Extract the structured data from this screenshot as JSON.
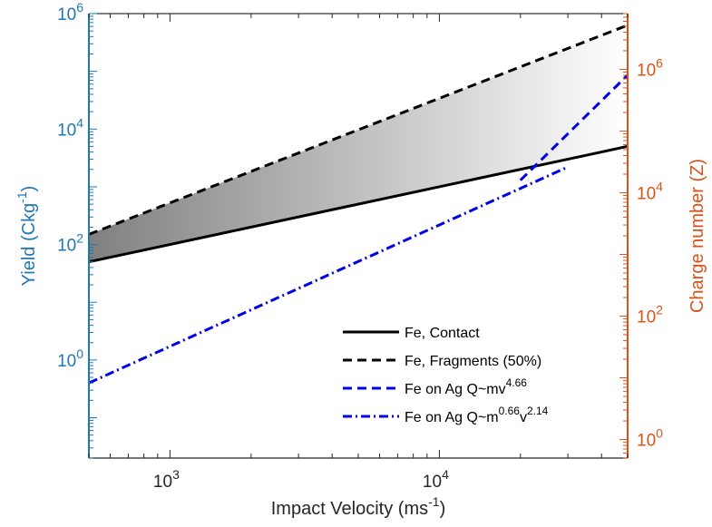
{
  "chart_data": {
    "type": "line",
    "title": "",
    "xlabel": {
      "text": "Impact Velocity (ms",
      "sup": "-1",
      "tail": ")"
    },
    "ylabel_left": {
      "text": "Yield (Ckg",
      "sup": "-1",
      "tail": ")"
    },
    "ylabel_right": {
      "text": "Charge number (Z)"
    },
    "x_scale": "log",
    "y_scale": "log",
    "xlim": [
      500,
      50000
    ],
    "ylim_left": [
      0.02,
      1000000
    ],
    "ylim_right": [
      0.5,
      8000000
    ],
    "x_ticks": [
      {
        "value": 1000,
        "base": "10",
        "exp": "3"
      },
      {
        "value": 10000,
        "base": "10",
        "exp": "4"
      }
    ],
    "y_ticks_left": [
      {
        "value": 1,
        "base": "10",
        "exp": "0"
      },
      {
        "value": 100,
        "base": "10",
        "exp": "2"
      },
      {
        "value": 10000,
        "base": "10",
        "exp": "4"
      },
      {
        "value": 1000000,
        "base": "10",
        "exp": "6"
      }
    ],
    "y_ticks_right": [
      {
        "value": 1,
        "base": "10",
        "exp": "0"
      },
      {
        "value": 100,
        "base": "10",
        "exp": "2"
      },
      {
        "value": 10000,
        "base": "10",
        "exp": "4"
      },
      {
        "value": 1000000,
        "base": "10",
        "exp": "6"
      }
    ],
    "colors": {
      "left_axis": "#1f77b4",
      "right_axis": "#d95319",
      "black_series": "#000000",
      "blue_series": "#0000e6",
      "fill_dark": "#808080",
      "fill_light": "#ffffff"
    },
    "grid": false,
    "legend_position": "bottom-right",
    "shaded_region": {
      "between": [
        "Fe, Contact",
        "Fe, Fragments (50%)"
      ],
      "gradient": "dark-left-to-light-right"
    },
    "series": [
      {
        "name": "Fe, Contact",
        "style": "solid",
        "color": "#000000",
        "axis": "left",
        "x": [
          500,
          50000
        ],
        "y": [
          50,
          5000
        ]
      },
      {
        "name": "Fe, Fragments (50%)",
        "style": "dashed",
        "color": "#000000",
        "axis": "left",
        "x": [
          500,
          50000
        ],
        "y": [
          150,
          630000
        ]
      },
      {
        "name": "Fe on Ag Q~mv",
        "name_sup": "4.66",
        "style": "dashed",
        "color": "#0000e6",
        "axis": "left",
        "x": [
          20000,
          50000
        ],
        "y": [
          1300,
          86000
        ]
      },
      {
        "name": "Fe on Ag Q~m",
        "name_sup": "0.66",
        "name_mid": "v",
        "name_sup2": "2.14",
        "style": "dashdot",
        "color": "#0000e6",
        "axis": "left",
        "x": [
          500,
          30000
        ],
        "y": [
          0.4,
          2200
        ]
      }
    ]
  }
}
